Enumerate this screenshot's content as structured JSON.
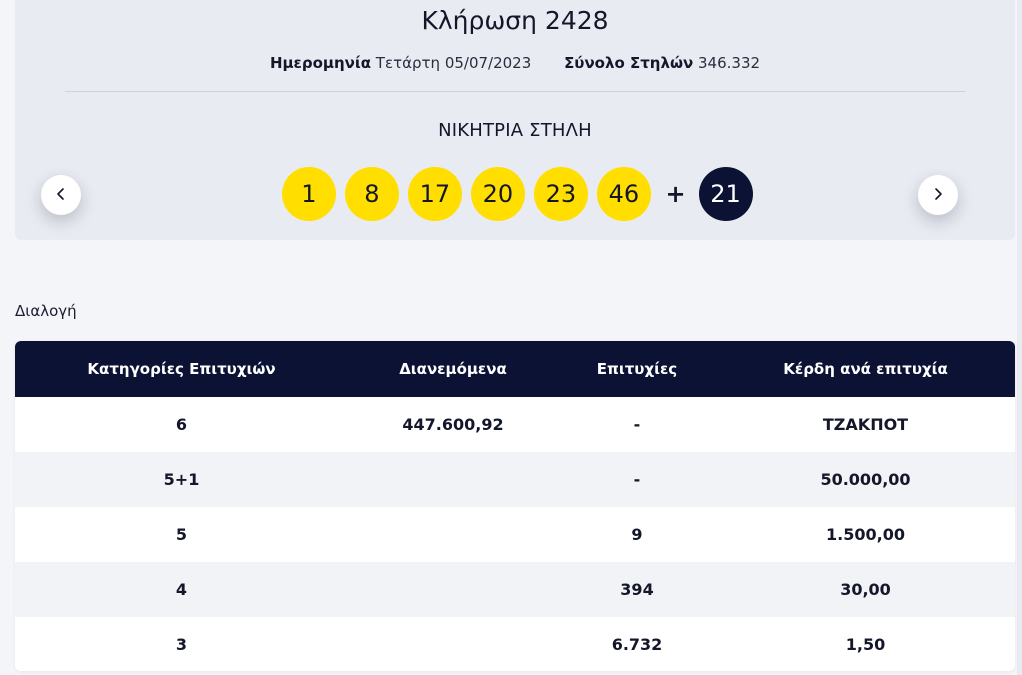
{
  "draw": {
    "title": "Κλήρωση 2428",
    "date_label": "Ημερομηνία",
    "date_value": "Τετάρτη 05/07/2023",
    "columns_label": "Σύνολο Στηλών",
    "columns_value": "346.332",
    "winning_label": "ΝΙΚΗΤΡΙΑ ΣΤΗΛΗ",
    "numbers": [
      "1",
      "8",
      "17",
      "20",
      "23",
      "46"
    ],
    "plus": "+",
    "bonus": "21"
  },
  "nav": {
    "prev_icon": "chevron-left-icon",
    "next_icon": "chevron-right-icon"
  },
  "selection_label": "Διαλογή",
  "table": {
    "headers": [
      "Κατηγορίες Επιτυχιών",
      "Διανεμόμενα",
      "Επιτυχίες",
      "Κέρδη ανά επιτυχία"
    ],
    "rows": [
      [
        "6",
        "447.600,92",
        "-",
        "ΤΖΑΚΠΟΤ"
      ],
      [
        "5+1",
        "",
        "-",
        "50.000,00"
      ],
      [
        "5",
        "",
        "9",
        "1.500,00"
      ],
      [
        "4",
        "",
        "394",
        "30,00"
      ],
      [
        "3",
        "",
        "6.732",
        "1,50"
      ]
    ]
  },
  "colors": {
    "ball": "#ffde00",
    "bonus_ball": "#0b1233",
    "table_header": "#0b1233",
    "card_bg": "#e9ebf2"
  }
}
